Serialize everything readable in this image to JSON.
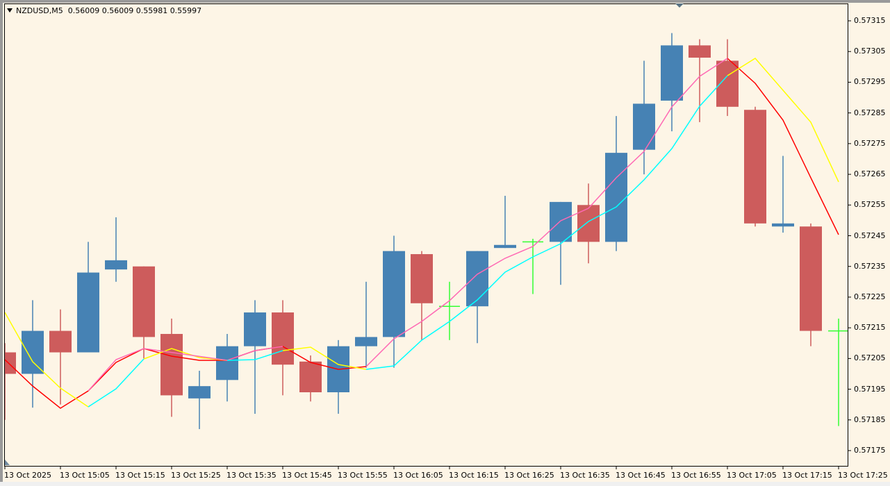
{
  "header": {
    "symbol": "NZDUSD,M5",
    "ohlc": "0.56009 0.56009 0.55981 0.55997"
  },
  "colors": {
    "background": "#fdf5e6",
    "bull": "#4682b4",
    "bear": "#cd5c5c",
    "doji": "#32ff32",
    "ma_red": "#ff0000",
    "ma_yellow": "#ffff00",
    "ma_pink": "#ff69b4",
    "ma_cyan": "#00ffff"
  },
  "chart_data": {
    "type": "candlestick",
    "title": "NZDUSD,M5",
    "ylim": [
      0.57172,
      0.57322
    ],
    "y_ticks": [
      "0.57315",
      "0.57305",
      "0.57295",
      "0.57285",
      "0.57275",
      "0.57265",
      "0.57255",
      "0.57245",
      "0.57235",
      "0.57225",
      "0.57215",
      "0.57205",
      "0.57195",
      "0.57185",
      "0.57175"
    ],
    "x_ticks": [
      "13 Oct 2025",
      "13 Oct 15:05",
      "13 Oct 15:15",
      "13 Oct 15:25",
      "13 Oct 15:35",
      "13 Oct 15:45",
      "13 Oct 15:55",
      "13 Oct 16:05",
      "13 Oct 16:15",
      "13 Oct 16:25",
      "13 Oct 16:35",
      "13 Oct 16:45",
      "13 Oct 16:55",
      "13 Oct 17:05",
      "13 Oct 17:15",
      "13 Oct 17:25"
    ],
    "candles": [
      {
        "x": 7,
        "open": 0.57207,
        "high": 0.5721,
        "low": 0.57185,
        "close": 0.572
      },
      {
        "x": 47,
        "open": 0.572,
        "high": 0.57224,
        "low": 0.57189,
        "close": 0.57214
      },
      {
        "x": 87,
        "open": 0.57214,
        "high": 0.57221,
        "low": 0.5719,
        "close": 0.57207
      },
      {
        "x": 127,
        "open": 0.57207,
        "high": 0.57243,
        "low": 0.57207,
        "close": 0.57233
      },
      {
        "x": 167,
        "open": 0.57234,
        "high": 0.57251,
        "low": 0.5723,
        "close": 0.57237
      },
      {
        "x": 207,
        "open": 0.57235,
        "high": 0.57221,
        "low": 0.57205,
        "close": 0.57212
      },
      {
        "x": 247,
        "open": 0.57213,
        "high": 0.57218,
        "low": 0.57186,
        "close": 0.57193
      },
      {
        "x": 287,
        "open": 0.57192,
        "high": 0.57201,
        "low": 0.57182,
        "close": 0.57196
      },
      {
        "x": 327,
        "open": 0.57198,
        "high": 0.57213,
        "low": 0.57191,
        "close": 0.57209
      },
      {
        "x": 367,
        "open": 0.57209,
        "high": 0.57224,
        "low": 0.57187,
        "close": 0.5722
      },
      {
        "x": 407,
        "open": 0.5722,
        "high": 0.57224,
        "low": 0.57193,
        "close": 0.57203
      },
      {
        "x": 447,
        "open": 0.57204,
        "high": 0.57206,
        "low": 0.57191,
        "close": 0.57194
      },
      {
        "x": 487,
        "open": 0.57194,
        "high": 0.57211,
        "low": 0.57187,
        "close": 0.57209
      },
      {
        "x": 527,
        "open": 0.57209,
        "high": 0.5723,
        "low": 0.57202,
        "close": 0.57212
      },
      {
        "x": 567,
        "open": 0.57212,
        "high": 0.57245,
        "low": 0.57202,
        "close": 0.5724
      },
      {
        "x": 607,
        "open": 0.57239,
        "high": 0.5724,
        "low": 0.57211,
        "close": 0.57223
      },
      {
        "x": 647,
        "open": 0.57222,
        "high": 0.5723,
        "low": 0.57211,
        "close": 0.57222
      },
      {
        "x": 687,
        "open": 0.57222,
        "high": 0.5724,
        "low": 0.5721,
        "close": 0.5724
      },
      {
        "x": 727,
        "open": 0.57241,
        "high": 0.57258,
        "low": 0.57241,
        "close": 0.57242
      },
      {
        "x": 767,
        "open": 0.57243,
        "high": 0.57244,
        "low": 0.57226,
        "close": 0.57243
      },
      {
        "x": 807,
        "open": 0.57243,
        "high": 0.57256,
        "low": 0.57229,
        "close": 0.57256
      },
      {
        "x": 847,
        "open": 0.57255,
        "high": 0.57262,
        "low": 0.57236,
        "close": 0.57243
      },
      {
        "x": 887,
        "open": 0.57243,
        "high": 0.57284,
        "low": 0.5724,
        "close": 0.57272
      },
      {
        "x": 927,
        "open": 0.57273,
        "high": 0.57302,
        "low": 0.57265,
        "close": 0.57288
      },
      {
        "x": 967,
        "open": 0.57289,
        "high": 0.57311,
        "low": 0.57279,
        "close": 0.57307
      },
      {
        "x": 1007,
        "open": 0.57307,
        "high": 0.57309,
        "low": 0.57282,
        "close": 0.57303
      },
      {
        "x": 1047,
        "open": 0.57302,
        "high": 0.57309,
        "low": 0.57284,
        "close": 0.57287
      },
      {
        "x": 1087,
        "open": 0.57286,
        "high": 0.57287,
        "low": 0.57248,
        "close": 0.57249
      },
      {
        "x": 1127,
        "open": 0.57248,
        "high": 0.57271,
        "low": 0.57246,
        "close": 0.57249
      },
      {
        "x": 1167,
        "open": 0.57248,
        "high": 0.57249,
        "low": 0.57209,
        "close": 0.57214
      },
      {
        "x": 1207,
        "open": 0.57214,
        "high": 0.57218,
        "low": 0.57183,
        "close": 0.57214
      }
    ],
    "series": [
      {
        "name": "MA red",
        "color": "#ff0000",
        "points": [
          [
            7,
            518
          ],
          [
            47,
            556
          ],
          [
            87,
            588
          ],
          [
            127,
            563
          ],
          [
            167,
            522
          ],
          [
            207,
            502
          ],
          [
            247,
            513
          ],
          [
            287,
            519
          ],
          [
            327,
            519
          ],
          [
            367,
            505
          ],
          [
            407,
            499
          ],
          [
            447,
            522
          ],
          [
            487,
            532
          ],
          [
            527,
            528
          ]
        ]
      },
      {
        "name": "MA red (right)",
        "color": "#ff0000",
        "points": [
          [
            1047,
            84
          ],
          [
            1087,
            120
          ],
          [
            1127,
            173
          ],
          [
            1167,
            256
          ],
          [
            1207,
            338
          ]
        ]
      },
      {
        "name": "MA yellow",
        "color": "#ffff00",
        "points": [
          [
            7,
            450
          ],
          [
            47,
            521
          ],
          [
            87,
            559
          ],
          [
            127,
            586
          ]
        ]
      },
      {
        "name": "MA yellow (mid)",
        "color": "#ffff00",
        "points": [
          [
            207,
            517
          ],
          [
            247,
            502
          ],
          [
            287,
            515
          ],
          [
            327,
            519
          ]
        ]
      },
      {
        "name": "MA yellow (mid2)",
        "color": "#ffff00",
        "points": [
          [
            407,
            505
          ],
          [
            447,
            500
          ],
          [
            487,
            525
          ],
          [
            527,
            532
          ]
        ]
      },
      {
        "name": "MA yellow (right)",
        "color": "#ffff00",
        "points": [
          [
            1047,
            109
          ],
          [
            1087,
            84
          ],
          [
            1127,
            130
          ],
          [
            1167,
            176
          ],
          [
            1207,
            262
          ]
        ]
      },
      {
        "name": "MA pink",
        "color": "#ff69b4",
        "points": [
          [
            127,
            563
          ],
          [
            167,
            518
          ],
          [
            207,
            502
          ],
          [
            327,
            519
          ],
          [
            367,
            505
          ],
          [
            407,
            499
          ]
        ]
      },
      {
        "name": "MA pink (2)",
        "color": "#ff69b4",
        "points": [
          [
            527,
            528
          ],
          [
            567,
            488
          ],
          [
            607,
            463
          ],
          [
            647,
            433
          ],
          [
            687,
            395
          ],
          [
            727,
            372
          ],
          [
            767,
            355
          ],
          [
            807,
            318
          ],
          [
            847,
            300
          ],
          [
            887,
            256
          ],
          [
            927,
            218
          ],
          [
            967,
            154
          ],
          [
            1007,
            110
          ],
          [
            1047,
            84
          ]
        ]
      },
      {
        "name": "MA cyan",
        "color": "#00ffff",
        "points": [
          [
            127,
            586
          ],
          [
            167,
            560
          ],
          [
            207,
            517
          ]
        ]
      },
      {
        "name": "MA cyan (2)",
        "color": "#00ffff",
        "points": [
          [
            327,
            519
          ],
          [
            367,
            518
          ],
          [
            407,
            505
          ]
        ]
      },
      {
        "name": "MA cyan (3)",
        "color": "#00ffff",
        "points": [
          [
            527,
            532
          ],
          [
            567,
            527
          ],
          [
            607,
            490
          ],
          [
            647,
            463
          ],
          [
            687,
            432
          ],
          [
            727,
            392
          ],
          [
            767,
            370
          ],
          [
            807,
            351
          ],
          [
            847,
            319
          ],
          [
            887,
            298
          ],
          [
            927,
            259
          ],
          [
            967,
            214
          ],
          [
            1007,
            153
          ],
          [
            1047,
            109
          ]
        ]
      }
    ]
  }
}
